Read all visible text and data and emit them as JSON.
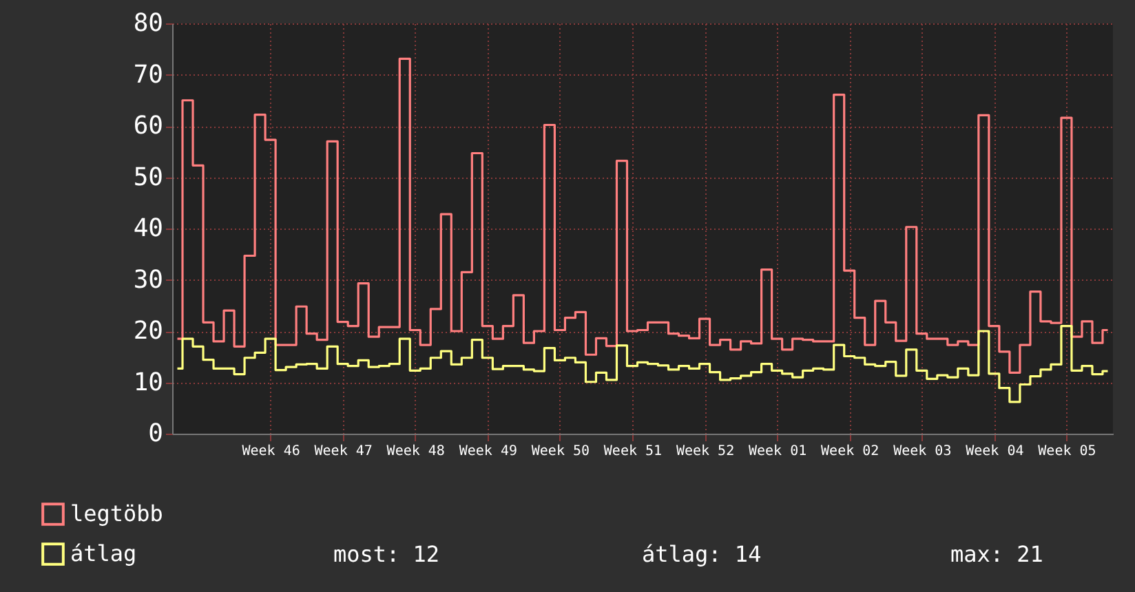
{
  "chart_data": {
    "type": "step",
    "ylim": [
      0,
      80
    ],
    "yticks": [
      0,
      10,
      20,
      30,
      40,
      50,
      60,
      70,
      80
    ],
    "categories": [
      null,
      null,
      null,
      null,
      null,
      null,
      null,
      null,
      null,
      "Week 46",
      null,
      null,
      null,
      null,
      null,
      null,
      "Week 47",
      null,
      null,
      null,
      null,
      null,
      null,
      "Week 48",
      null,
      null,
      null,
      null,
      null,
      null,
      "Week 49",
      null,
      null,
      null,
      null,
      null,
      null,
      "Week 50",
      null,
      null,
      null,
      null,
      null,
      null,
      "Week 51",
      null,
      null,
      null,
      null,
      null,
      null,
      "Week 52",
      null,
      null,
      null,
      null,
      null,
      null,
      "Week 01",
      null,
      null,
      null,
      null,
      null,
      null,
      "Week 02",
      null,
      null,
      null,
      null,
      null,
      null,
      "Week 03",
      null,
      null,
      null,
      null,
      null,
      null,
      "Week 04",
      null,
      null,
      null,
      null,
      null,
      null,
      "Week 05",
      null,
      null,
      null,
      null
    ],
    "series": [
      {
        "name": "legtöbb",
        "color": "#ff7f7f",
        "values": [
          18.5,
          65,
          52.3,
          21.7,
          18,
          24,
          17,
          34.7,
          62.2,
          57.3,
          17.3,
          17.3,
          24.8,
          19.5,
          18.3,
          57,
          21.8,
          21,
          29.3,
          18.9,
          20.8,
          20.8,
          73.1,
          20.2,
          17.3,
          24.3,
          42.8,
          20,
          31.5,
          54.7,
          21,
          18.5,
          21,
          27,
          17.7,
          20,
          60.2,
          20.2,
          22.6,
          23.7,
          15.4,
          18.6,
          17.1,
          53.2,
          20,
          20.2,
          21.7,
          21.7,
          19.5,
          19.1,
          18.6,
          22.4,
          17.3,
          18.3,
          16.4,
          18,
          17.6,
          32,
          18.5,
          16.4,
          18.5,
          18.3,
          18,
          18,
          66.1,
          31.8,
          22.6,
          17.3,
          25.9,
          21.7,
          18.1,
          40.3,
          19.5,
          18.5,
          18.5,
          17.3,
          18,
          17.3,
          62.1,
          21,
          16,
          11.9,
          17.3,
          27.7,
          21.9,
          21.6,
          61.6,
          18.9,
          21.9,
          17.7,
          20.2
        ]
      },
      {
        "name": "átlag",
        "color": "#ffff80",
        "values": [
          12.7,
          18.5,
          17,
          14.4,
          12.7,
          12.7,
          11.6,
          14.8,
          15.8,
          18.5,
          12.4,
          13,
          13.5,
          13.6,
          12.7,
          17,
          13.6,
          13.2,
          14.3,
          13,
          13.2,
          13.6,
          18.5,
          12.3,
          12.7,
          14.8,
          16.1,
          13.5,
          14.8,
          18.3,
          14.8,
          12.6,
          13.2,
          13.2,
          12.5,
          12.2,
          16.7,
          14.3,
          14.8,
          13.9,
          10.1,
          11.9,
          10.5,
          17.2,
          13.2,
          13.9,
          13.6,
          13.3,
          12.5,
          13.2,
          12.7,
          13.6,
          12,
          10.5,
          10.8,
          11.3,
          12,
          13.6,
          12.3,
          11.7,
          11,
          12.3,
          12.7,
          12.5,
          17.3,
          15.1,
          14.8,
          13.5,
          13.2,
          14,
          11.3,
          16.4,
          12.3,
          10.7,
          11.4,
          11,
          12.7,
          11.4,
          20,
          11.7,
          8.9,
          6.2,
          9.6,
          11.2,
          12.5,
          13.5,
          21,
          12.3,
          13.2,
          11.6,
          12.2
        ]
      }
    ],
    "grid": true,
    "legend": "bottom left",
    "annotations": [
      "most: 12",
      "átlag: 14",
      "max: 21"
    ]
  }
}
